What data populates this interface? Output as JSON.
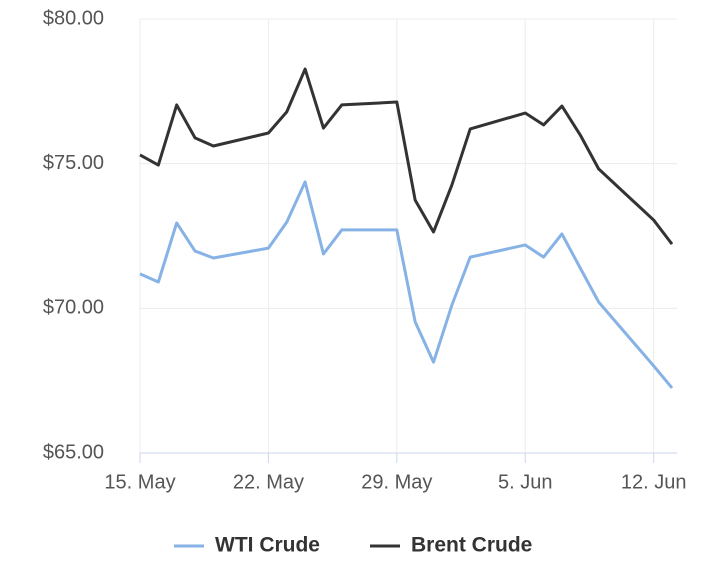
{
  "chart_data": {
    "type": "line",
    "x": [
      "15. May",
      "16. May",
      "17. May",
      "18. May",
      "19. May",
      "22. May",
      "23. May",
      "24. May",
      "25. May",
      "26. May",
      "29. May",
      "30. May",
      "31. May",
      "1. Jun",
      "2. Jun",
      "5. Jun",
      "6. Jun",
      "7. Jun",
      "8. Jun",
      "9. Jun",
      "12. Jun",
      "13. Jun"
    ],
    "xlim": [
      "15. May",
      "13. Jun"
    ],
    "xticks": [
      "15. May",
      "22. May",
      "29. May",
      "5. Jun",
      "12. Jun"
    ],
    "ylim": [
      65,
      80
    ],
    "yticks": [
      {
        "value": 65,
        "label": "$65.00"
      },
      {
        "value": 70,
        "label": "$70.00"
      },
      {
        "value": 75,
        "label": "$75.00"
      },
      {
        "value": 80,
        "label": "$80.00"
      }
    ],
    "grid": true,
    "legend": "bottom",
    "series": [
      {
        "name": "WTI Crude",
        "color": "#86b2e6",
        "values": [
          71.19,
          70.91,
          72.95,
          71.98,
          71.74,
          72.08,
          72.98,
          74.37,
          71.88,
          72.71,
          72.71,
          69.53,
          68.14,
          70.11,
          71.77,
          72.19,
          71.77,
          72.57,
          71.39,
          70.22,
          68.01,
          67.25
        ]
      },
      {
        "name": "Brent Crude",
        "color": "#333333",
        "values": [
          75.3,
          74.95,
          77.03,
          75.89,
          75.61,
          76.06,
          76.79,
          78.27,
          76.23,
          77.03,
          77.13,
          73.74,
          72.64,
          74.26,
          76.2,
          76.75,
          76.34,
          76.99,
          75.99,
          74.82,
          73.05,
          72.22
        ]
      }
    ]
  }
}
